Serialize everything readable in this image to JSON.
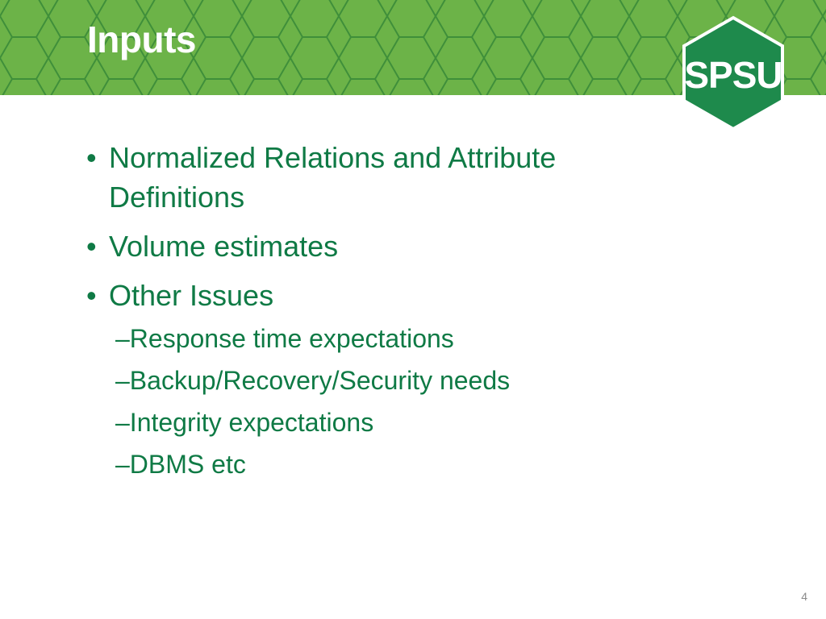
{
  "slide": {
    "title": "Inputs",
    "logo_text": "SPSU",
    "page_number": "4",
    "bullets": [
      {
        "marker": "•",
        "text": "Normalized Relations and Attribute Definitions"
      },
      {
        "marker": "•",
        "text": "Volume estimates"
      },
      {
        "marker": "•",
        "text": "Other Issues"
      }
    ],
    "sub_bullets": [
      {
        "marker": "–",
        "text": "Response time expectations"
      },
      {
        "marker": "–",
        "text": "Backup/Recovery/Security needs"
      },
      {
        "marker": "–",
        "text": "Integrity expectations"
      },
      {
        "marker": "–",
        "text": "DBMS etc"
      }
    ]
  },
  "colors": {
    "banner_green": "#6cb348",
    "hex_line": "#3f8f3a",
    "text_green": "#0f7a45",
    "logo_green": "#1e8a4c"
  }
}
